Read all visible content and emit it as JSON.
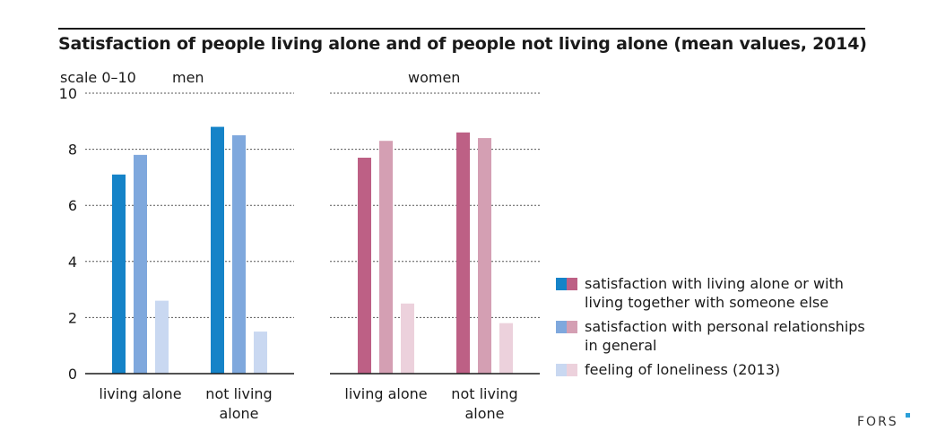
{
  "title": "Satisfaction of people living alone and of people not living alone (mean values, 2014)",
  "scale_label": "scale 0–10",
  "panels": {
    "men": "men",
    "women": "women"
  },
  "brand": "FORS",
  "chart_data": {
    "type": "bar",
    "ylim": [
      0,
      10
    ],
    "yticks": [
      0,
      2,
      4,
      6,
      8,
      10
    ],
    "grid": true,
    "legend_position": "right",
    "panels": [
      {
        "name": "men",
        "categories": [
          "living alone",
          "not living\nalone"
        ],
        "series": [
          {
            "name": "satisfaction with living alone or with living together with someone else",
            "values": [
              7.1,
              8.8
            ],
            "color": "#1583c8"
          },
          {
            "name": "satisfaction with personal relationships in general",
            "values": [
              7.8,
              8.5
            ],
            "color": "#7fa8dd"
          },
          {
            "name": "feeling of loneliness (2013)",
            "values": [
              2.6,
              1.5
            ],
            "color": "#c9d8f1"
          }
        ]
      },
      {
        "name": "women",
        "categories": [
          "living alone",
          "not living\nalone"
        ],
        "series": [
          {
            "name": "satisfaction with living alone or with living together with someone else",
            "values": [
              7.7,
              8.6
            ],
            "color": "#bd6085"
          },
          {
            "name": "satisfaction with personal relationships in general",
            "values": [
              8.3,
              8.4
            ],
            "color": "#d49fb3"
          },
          {
            "name": "feeling of loneliness (2013)",
            "values": [
              2.5,
              1.8
            ],
            "color": "#ecd1dc"
          }
        ]
      }
    ]
  },
  "legend": [
    {
      "label": "satisfaction with living alone or with living together with someone else",
      "colors": [
        "#1583c8",
        "#bd6085"
      ]
    },
    {
      "label": "satisfaction with personal relationships in general",
      "colors": [
        "#7fa8dd",
        "#d49fb3"
      ]
    },
    {
      "label": "feeling of loneliness (2013)",
      "colors": [
        "#c9d8f1",
        "#ecd1dc"
      ]
    }
  ]
}
